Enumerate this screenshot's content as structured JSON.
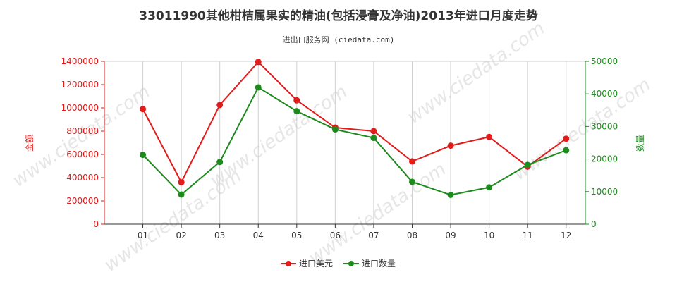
{
  "chart_data": {
    "type": "line",
    "title": "33011990其他柑桔属果实的精油(包括浸膏及净油)2013年进口月度走势",
    "subtitle": "进出口服务网 (ciedata.com)",
    "categories": [
      "01",
      "02",
      "03",
      "04",
      "05",
      "06",
      "07",
      "08",
      "09",
      "10",
      "11",
      "12"
    ],
    "ylabel_left": "金额",
    "ylabel_right": "数量",
    "ylim_left": [
      0,
      1400000
    ],
    "ylim_right": [
      0,
      50000
    ],
    "yticks_left": [
      "0",
      "200000",
      "400000",
      "600000",
      "800000",
      "1000000",
      "1200000",
      "1400000"
    ],
    "yticks_right": [
      "0",
      "10000",
      "20000",
      "30000",
      "40000",
      "50000"
    ],
    "yticks_left_values": [
      0,
      200000,
      400000,
      600000,
      800000,
      1000000,
      1200000,
      1400000
    ],
    "yticks_right_values": [
      0,
      10000,
      20000,
      30000,
      40000,
      50000
    ],
    "grid": "vertical",
    "legend_position": "bottom-center",
    "series": [
      {
        "name": "进口美元",
        "axis": "left",
        "color": "#e21b1b",
        "values": [
          990000,
          360000,
          1025000,
          1395000,
          1065000,
          830000,
          800000,
          540000,
          675000,
          750000,
          495000,
          735000
        ]
      },
      {
        "name": "进口数量",
        "axis": "right",
        "color": "#1d8a1d",
        "values": [
          21300,
          9100,
          19100,
          42000,
          34700,
          29100,
          26500,
          13000,
          9000,
          11300,
          18200,
          22700
        ]
      }
    ],
    "watermark": "www.ciedata.com"
  }
}
